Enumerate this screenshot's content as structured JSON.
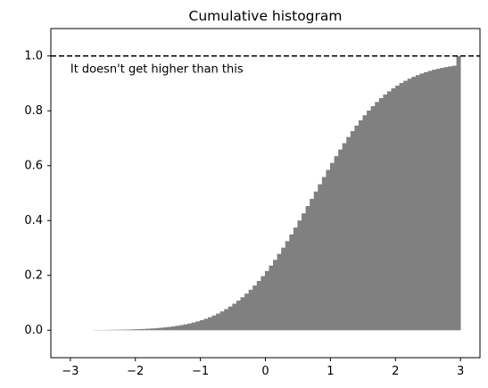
{
  "chart_data": {
    "type": "bar",
    "title": "Cumulative histogram",
    "xlabel": "",
    "ylabel": "",
    "xlim": [
      -3.3,
      3.3
    ],
    "ylim": [
      -0.1,
      1.1
    ],
    "x_ticks": [
      -3,
      -2,
      -1,
      0,
      1,
      2,
      3
    ],
    "x_tick_labels": [
      "−3",
      "−2",
      "−1",
      "0",
      "1",
      "2",
      "3"
    ],
    "y_ticks": [
      0.0,
      0.2,
      0.4,
      0.6,
      0.8,
      1.0
    ],
    "y_tick_labels": [
      "0.0",
      "0.2",
      "0.4",
      "0.6",
      "0.8",
      "1.0"
    ],
    "grid": false,
    "bar_color": "#808080",
    "bin_range": [
      -2.64,
      3.0
    ],
    "bin_count": 90,
    "cumulative_values": [
      0.0007,
      0.0008,
      0.001,
      0.0012,
      0.0014,
      0.0016,
      0.0019,
      0.0022,
      0.0026,
      0.0031,
      0.0036,
      0.0042,
      0.0049,
      0.0058,
      0.0067,
      0.0078,
      0.009,
      0.0105,
      0.0121,
      0.014,
      0.0162,
      0.0186,
      0.0214,
      0.0246,
      0.0282,
      0.0322,
      0.0367,
      0.0418,
      0.0475,
      0.0538,
      0.0608,
      0.0686,
      0.0771,
      0.0865,
      0.0968,
      0.108,
      0.1203,
      0.1335,
      0.1478,
      0.1632,
      0.1797,
      0.1973,
      0.216,
      0.2358,
      0.2566,
      0.2784,
      0.3012,
      0.3249,
      0.3493,
      0.3744,
      0.4001,
      0.4262,
      0.4526,
      0.4792,
      0.5058,
      0.5323,
      0.5586,
      0.5845,
      0.6099,
      0.6347,
      0.6588,
      0.6821,
      0.7045,
      0.7259,
      0.7463,
      0.7656,
      0.7839,
      0.8011,
      0.8172,
      0.8322,
      0.8462,
      0.8591,
      0.8711,
      0.882,
      0.8921,
      0.9013,
      0.9096,
      0.9172,
      0.9241,
      0.9303,
      0.936,
      0.941,
      0.9456,
      0.9497,
      0.9533,
      0.9566,
      0.9595,
      0.9621,
      0.9644,
      1.0
    ],
    "reference_line": {
      "y": 1.0,
      "style": "dashed",
      "color": "#000000"
    },
    "annotation": {
      "text": "It doesn't get higher than this",
      "x": -3.0,
      "y": 0.95
    }
  }
}
